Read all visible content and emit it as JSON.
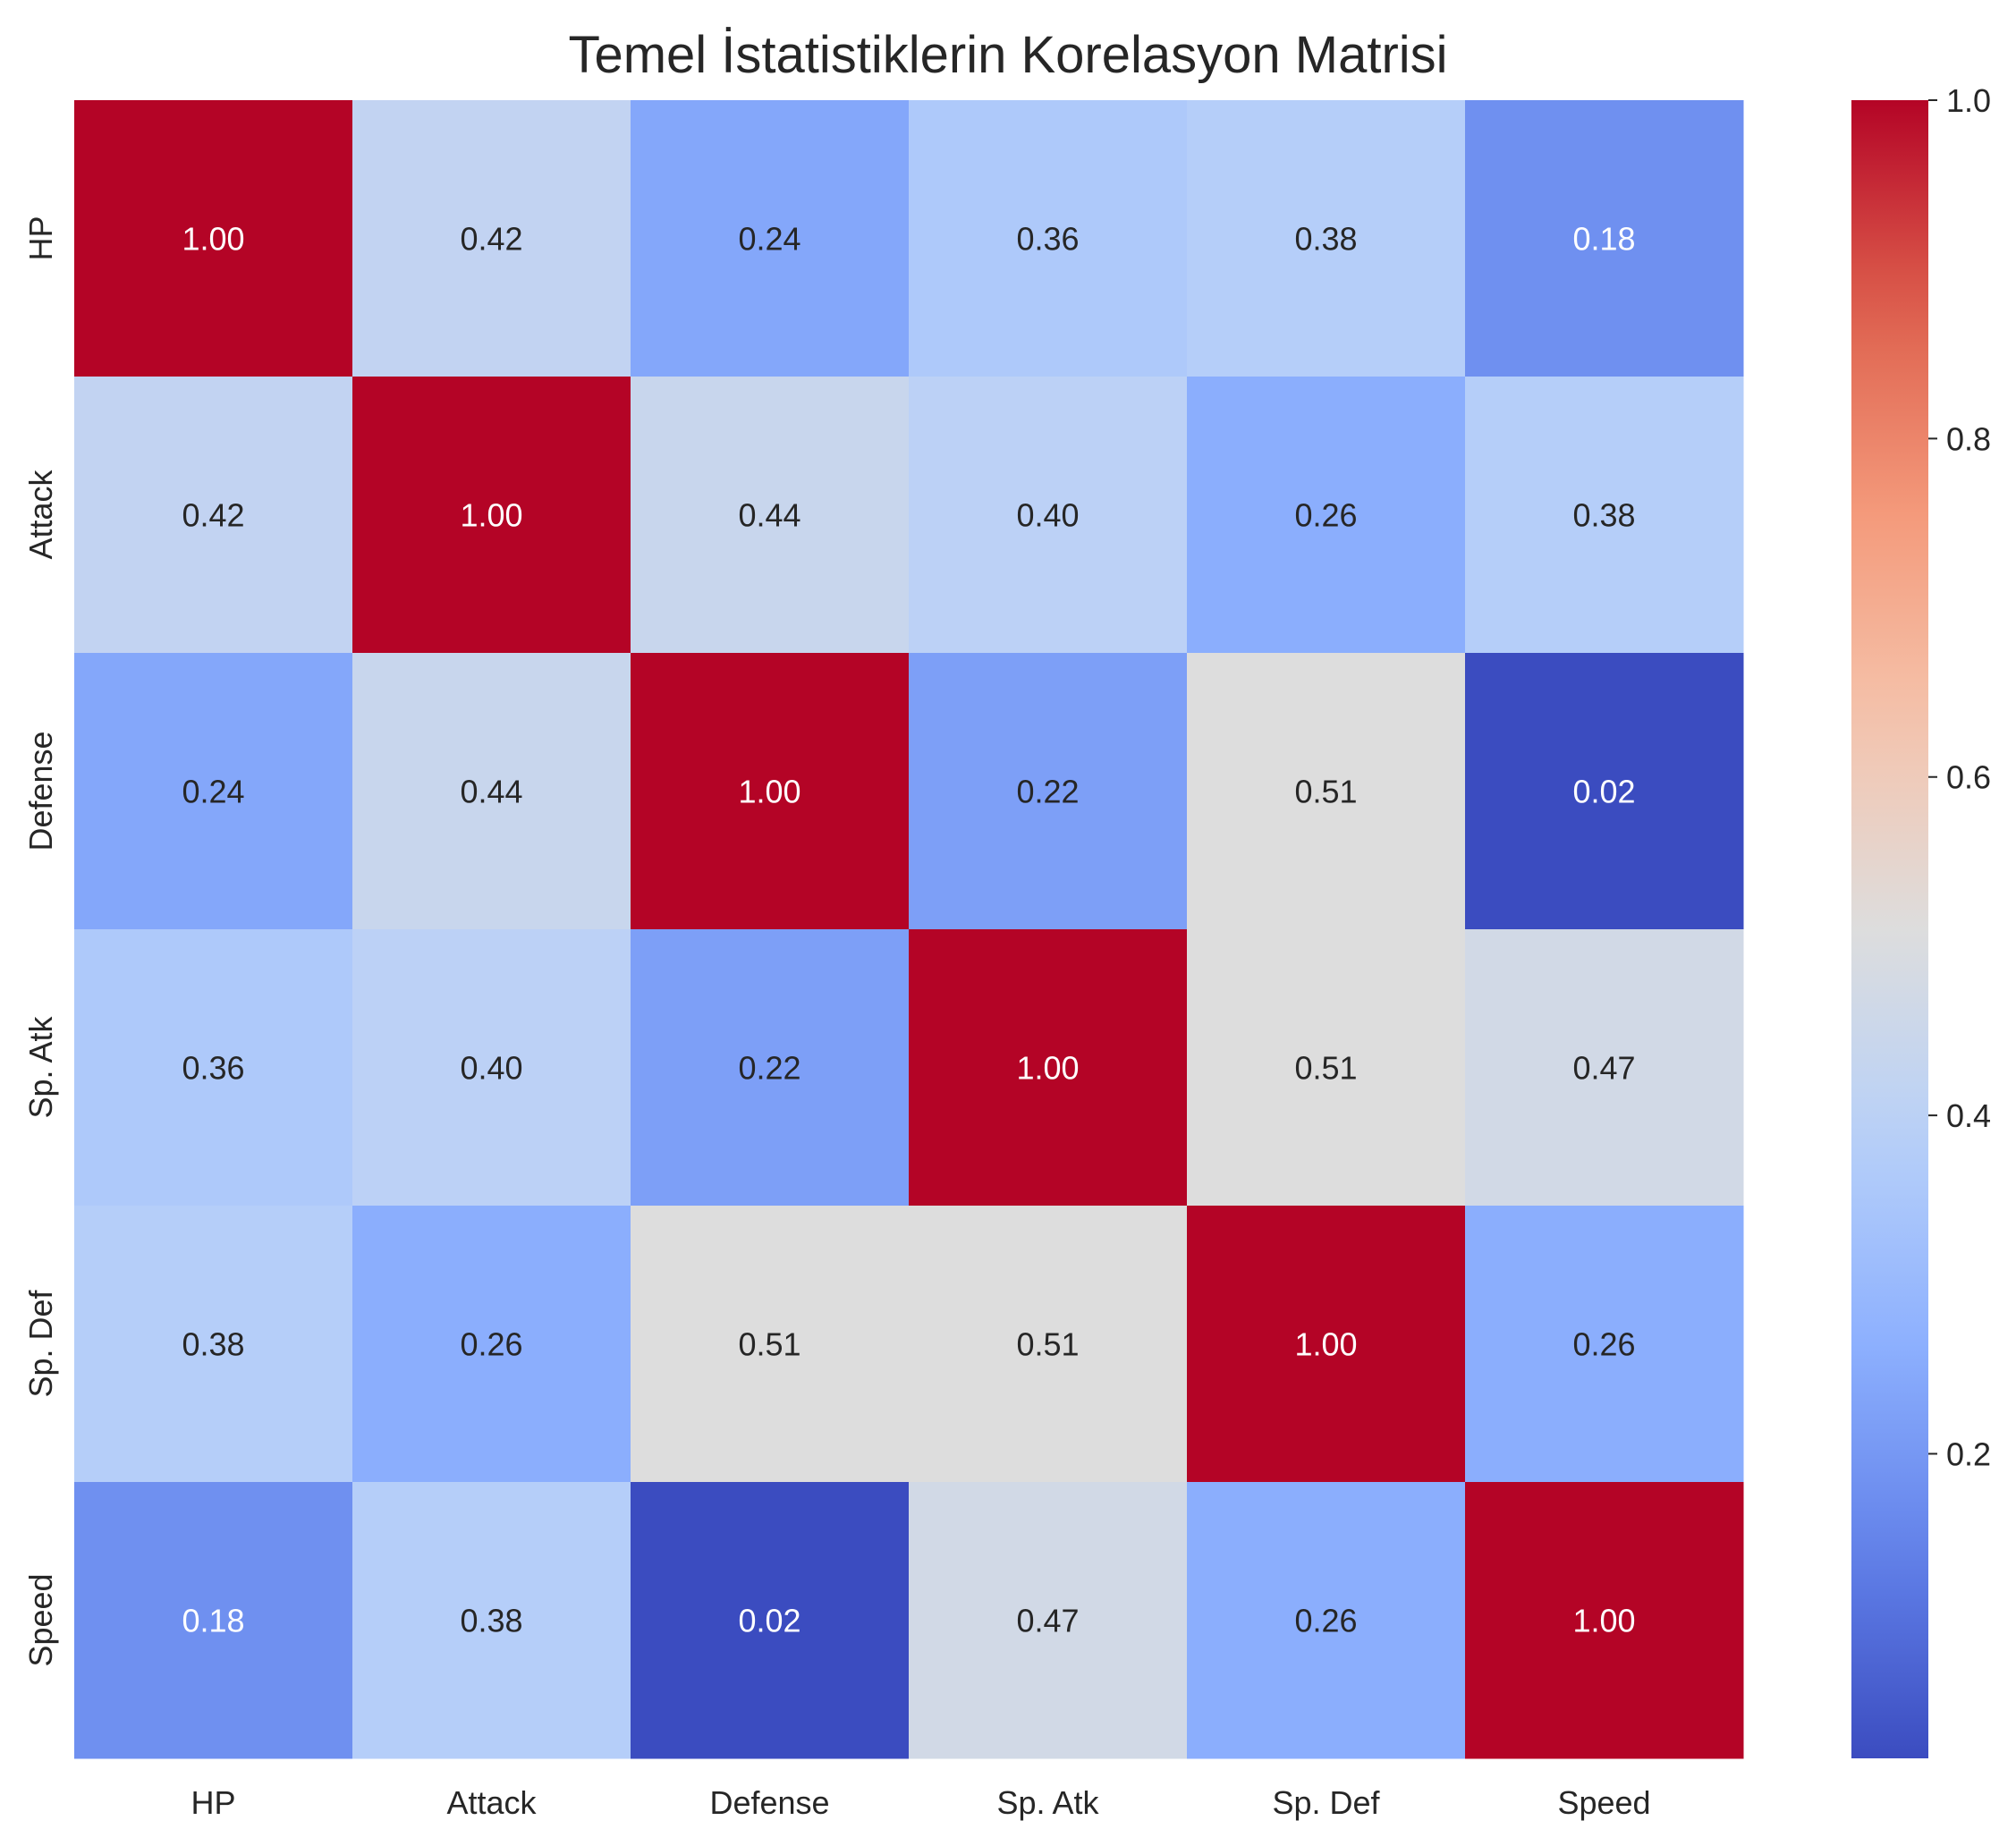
{
  "chart_data": {
    "type": "heatmap",
    "title": "Temel İstatistiklerin Korelasyon Matrisi",
    "xlabel": "",
    "ylabel": "",
    "x_categories": [
      "HP",
      "Attack",
      "Defense",
      "Sp. Atk",
      "Sp. Def",
      "Speed"
    ],
    "y_categories": [
      "HP",
      "Attack",
      "Defense",
      "Sp. Atk",
      "Sp. Def",
      "Speed"
    ],
    "values": [
      [
        1.0,
        0.42,
        0.24,
        0.36,
        0.38,
        0.18
      ],
      [
        0.42,
        1.0,
        0.44,
        0.4,
        0.26,
        0.38
      ],
      [
        0.24,
        0.44,
        1.0,
        0.22,
        0.51,
        0.02
      ],
      [
        0.36,
        0.4,
        0.22,
        1.0,
        0.51,
        0.47
      ],
      [
        0.38,
        0.26,
        0.51,
        0.51,
        1.0,
        0.26
      ],
      [
        0.18,
        0.38,
        0.02,
        0.47,
        0.26,
        1.0
      ]
    ],
    "value_format": "2 decimals",
    "colormap": "coolwarm",
    "colorbar": {
      "vmin": 0.02,
      "vmax": 1.0,
      "ticks": [
        0.2,
        0.4,
        0.6,
        0.8,
        1.0
      ],
      "tick_labels": [
        "0.2",
        "0.4",
        "0.6",
        "0.8",
        "1.0"
      ]
    },
    "grid": false
  }
}
